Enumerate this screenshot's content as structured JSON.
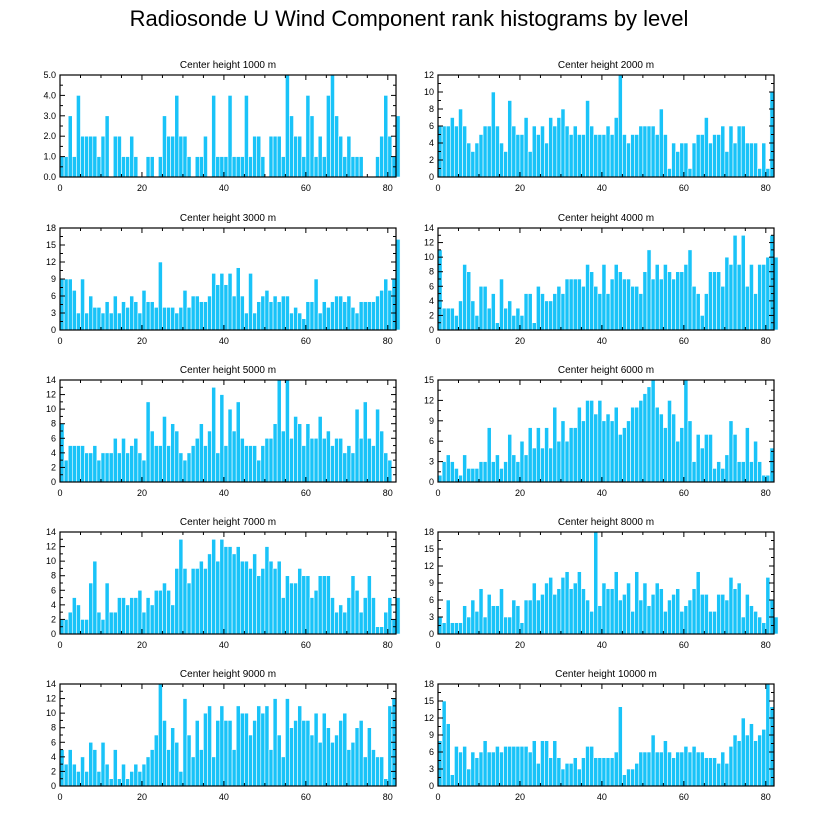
{
  "title": "Radiosonde U Wind Component rank histograms by level",
  "colors": {
    "bar": "#19c3f8",
    "bar_edge": "#ffffff",
    "axis": "#000000"
  },
  "chart_data": [
    {
      "type": "bar",
      "title": "Center height 1000 m",
      "xlim": [
        0,
        82
      ],
      "ylim": [
        0,
        5
      ],
      "xticks": [
        0,
        20,
        40,
        60,
        80
      ],
      "yticks": [
        0,
        1,
        2,
        3,
        4,
        5
      ],
      "ytick_labels": [
        "0.0",
        "1.0",
        "2.0",
        "3.0",
        "4.0",
        "5.0"
      ],
      "values": [
        1,
        1,
        3,
        1,
        4,
        2,
        2,
        2,
        2,
        1,
        2,
        3,
        0,
        2,
        2,
        1,
        1,
        2,
        1,
        0,
        0,
        1,
        1,
        0,
        1,
        3,
        2,
        2,
        4,
        2,
        2,
        1,
        0,
        1,
        1,
        2,
        0,
        4,
        1,
        1,
        1,
        4,
        1,
        1,
        1,
        4,
        1,
        2,
        2,
        1,
        0,
        2,
        2,
        2,
        1,
        5,
        3,
        2,
        2,
        1,
        4,
        3,
        1,
        2,
        1,
        4,
        5,
        3,
        2,
        1,
        2,
        1,
        1,
        1,
        0,
        0,
        0,
        1,
        2,
        4,
        2,
        1,
        3
      ]
    },
    {
      "type": "bar",
      "title": "Center height 2000 m",
      "xlim": [
        0,
        82
      ],
      "ylim": [
        0,
        12
      ],
      "xticks": [
        0,
        20,
        40,
        60,
        80
      ],
      "yticks": [
        0,
        2,
        4,
        6,
        8,
        10,
        12
      ],
      "ytick_labels": [
        "0",
        "2",
        "4",
        "6",
        "8",
        "10",
        "12"
      ],
      "values": [
        6,
        6,
        6,
        7,
        6,
        8,
        6,
        4,
        3,
        4,
        5,
        6,
        6,
        10,
        6,
        4,
        3,
        9,
        6,
        5,
        5,
        7,
        3,
        6,
        5,
        6,
        4,
        7,
        6,
        7,
        8,
        6,
        5,
        6,
        5,
        5,
        9,
        6,
        5,
        5,
        5,
        6,
        5,
        7,
        12,
        5,
        4,
        5,
        5,
        6,
        6,
        6,
        6,
        5,
        8,
        5,
        1,
        4,
        3,
        4,
        4,
        1,
        4,
        5,
        5,
        7,
        4,
        5,
        5,
        6,
        3,
        6,
        4,
        6,
        6,
        4,
        4,
        4,
        1,
        4,
        1,
        10
      ]
    },
    {
      "type": "bar",
      "title": "Center height 3000 m",
      "xlim": [
        0,
        82
      ],
      "ylim": [
        0,
        18
      ],
      "xticks": [
        0,
        20,
        40,
        60,
        80
      ],
      "yticks": [
        0,
        3,
        6,
        9,
        12,
        15,
        18
      ],
      "ytick_labels": [
        "0",
        "3",
        "6",
        "9",
        "12",
        "15",
        "18"
      ],
      "values": [
        9,
        9,
        9,
        7,
        3,
        9,
        3,
        6,
        4,
        4,
        3,
        5,
        3,
        6,
        3,
        5,
        4,
        6,
        5,
        3,
        7,
        5,
        5,
        4,
        12,
        4,
        4,
        4,
        3,
        4,
        7,
        4,
        6,
        6,
        5,
        5,
        6,
        10,
        8,
        10,
        8,
        10,
        6,
        11,
        6,
        3,
        10,
        3,
        5,
        6,
        7,
        5,
        6,
        5,
        6,
        6,
        3,
        4,
        3,
        2,
        5,
        5,
        9,
        3,
        5,
        4,
        5,
        6,
        6,
        5,
        6,
        4,
        3,
        5,
        5,
        5,
        5,
        6,
        7,
        9,
        7,
        9,
        16
      ]
    },
    {
      "type": "bar",
      "title": "Center height 4000 m",
      "xlim": [
        0,
        82
      ],
      "ylim": [
        0,
        14
      ],
      "xticks": [
        0,
        20,
        40,
        60,
        80
      ],
      "yticks": [
        0,
        2,
        4,
        6,
        8,
        10,
        12,
        14
      ],
      "ytick_labels": [
        "0",
        "2",
        "4",
        "6",
        "8",
        "10",
        "12",
        "14"
      ],
      "values": [
        11,
        3,
        3,
        3,
        2,
        4,
        9,
        8,
        4,
        2,
        6,
        6,
        3,
        5,
        1,
        7,
        3,
        4,
        2,
        3,
        2,
        5,
        5,
        1,
        6,
        5,
        4,
        4,
        5,
        6,
        5,
        7,
        7,
        7,
        7,
        6,
        9,
        8,
        6,
        5,
        9,
        5,
        7,
        9,
        8,
        7,
        7,
        6,
        6,
        5,
        8,
        11,
        7,
        9,
        7,
        9,
        8,
        7,
        8,
        8,
        9,
        11,
        6,
        5,
        2,
        5,
        8,
        8,
        8,
        6,
        10,
        9,
        13,
        9,
        13,
        6,
        9,
        5,
        9,
        9,
        10,
        13,
        10
      ]
    },
    {
      "type": "bar",
      "title": "Center height 5000 m",
      "xlim": [
        0,
        82
      ],
      "ylim": [
        0,
        14
      ],
      "xticks": [
        0,
        20,
        40,
        60,
        80
      ],
      "yticks": [
        0,
        2,
        4,
        6,
        8,
        10,
        12,
        14
      ],
      "ytick_labels": [
        "0",
        "2",
        "4",
        "6",
        "8",
        "10",
        "12",
        "14"
      ],
      "values": [
        8,
        3,
        5,
        5,
        5,
        5,
        4,
        4,
        5,
        3,
        4,
        4,
        4,
        6,
        4,
        6,
        4,
        5,
        6,
        4,
        3,
        11,
        7,
        5,
        5,
        9,
        5,
        8,
        7,
        4,
        3,
        4,
        5,
        6,
        8,
        5,
        7,
        13,
        4,
        12,
        5,
        10,
        7,
        11,
        6,
        5,
        5,
        5,
        3,
        5,
        6,
        6,
        8,
        14,
        7,
        14,
        6,
        9,
        8,
        5,
        8,
        6,
        6,
        9,
        6,
        7,
        5,
        6,
        6,
        4,
        5,
        4,
        10,
        6,
        11,
        6,
        5,
        10,
        7,
        4,
        3
      ]
    },
    {
      "type": "bar",
      "title": "Center height 6000 m",
      "xlim": [
        0,
        82
      ],
      "ylim": [
        0,
        15
      ],
      "xticks": [
        0,
        20,
        40,
        60,
        80
      ],
      "yticks": [
        0,
        3,
        6,
        9,
        12,
        15
      ],
      "ytick_labels": [
        "0",
        "3",
        "6",
        "9",
        "12",
        "15"
      ],
      "values": [
        1,
        3,
        4,
        3,
        2,
        1,
        4,
        2,
        2,
        2,
        3,
        3,
        8,
        3,
        4,
        2,
        3,
        7,
        4,
        3,
        6,
        4,
        8,
        5,
        8,
        5,
        8,
        5,
        11,
        6,
        9,
        6,
        8,
        8,
        11,
        9,
        12,
        12,
        10,
        12,
        9,
        10,
        9,
        11,
        7,
        8,
        9,
        11,
        11,
        12,
        13,
        14,
        15,
        11,
        10,
        8,
        12,
        10,
        6,
        8,
        15,
        9,
        3,
        7,
        5,
        7,
        7,
        2,
        3,
        2,
        4,
        9,
        7,
        3,
        3,
        8,
        3,
        6,
        3,
        1,
        1,
        5
      ]
    },
    {
      "type": "bar",
      "title": "Center height 7000 m",
      "xlim": [
        0,
        82
      ],
      "ylim": [
        0,
        14
      ],
      "xticks": [
        0,
        20,
        40,
        60,
        80
      ],
      "yticks": [
        0,
        2,
        4,
        6,
        8,
        10,
        12,
        14
      ],
      "ytick_labels": [
        "0",
        "2",
        "4",
        "6",
        "8",
        "10",
        "12",
        "14"
      ],
      "values": [
        2,
        2,
        3,
        5,
        4,
        2,
        2,
        7,
        10,
        3,
        2,
        7,
        3,
        3,
        5,
        5,
        4,
        5,
        5,
        6,
        3,
        5,
        4,
        6,
        6,
        7,
        6,
        4,
        9,
        13,
        9,
        7,
        9,
        9,
        10,
        9,
        11,
        13,
        10,
        13,
        12,
        12,
        11,
        12,
        10,
        10,
        9,
        11,
        8,
        9,
        12,
        10,
        9,
        10,
        5,
        8,
        7,
        7,
        9,
        8,
        8,
        5,
        6,
        8,
        8,
        8,
        5,
        3,
        4,
        3,
        5,
        8,
        6,
        3,
        5,
        8,
        5,
        1,
        1,
        3,
        5,
        2,
        5
      ]
    },
    {
      "type": "bar",
      "title": "Center height 8000 m",
      "xlim": [
        0,
        82
      ],
      "ylim": [
        0,
        18
      ],
      "xticks": [
        0,
        20,
        40,
        60,
        80
      ],
      "yticks": [
        0,
        3,
        6,
        9,
        12,
        15,
        18
      ],
      "ytick_labels": [
        "0",
        "3",
        "6",
        "9",
        "12",
        "15",
        "18"
      ],
      "values": [
        3,
        2,
        6,
        2,
        2,
        2,
        5,
        3,
        6,
        4,
        8,
        3,
        7,
        5,
        5,
        8,
        3,
        3,
        6,
        5,
        2,
        6,
        6,
        9,
        6,
        7,
        9,
        10,
        7,
        8,
        10,
        11,
        8,
        9,
        11,
        8,
        6,
        4,
        18,
        5,
        9,
        8,
        8,
        11,
        6,
        7,
        9,
        4,
        11,
        6,
        9,
        5,
        7,
        9,
        8,
        4,
        6,
        7,
        8,
        4,
        5,
        6,
        8,
        11,
        7,
        7,
        4,
        4,
        7,
        7,
        6,
        10,
        8,
        9,
        3,
        7,
        5,
        4,
        3,
        2,
        10,
        6,
        3
      ]
    },
    {
      "type": "bar",
      "title": "Center height 9000 m",
      "xlim": [
        0,
        82
      ],
      "ylim": [
        0,
        14
      ],
      "xticks": [
        0,
        20,
        40,
        60,
        80
      ],
      "yticks": [
        0,
        2,
        4,
        6,
        8,
        10,
        12,
        14
      ],
      "ytick_labels": [
        "0",
        "2",
        "4",
        "6",
        "8",
        "10",
        "12",
        "14"
      ],
      "values": [
        5,
        3,
        5,
        3,
        2,
        4,
        2,
        6,
        5,
        2,
        6,
        3,
        1,
        5,
        1,
        3,
        1,
        2,
        3,
        2,
        3,
        4,
        5,
        7,
        14,
        9,
        5,
        8,
        6,
        2,
        12,
        7,
        4,
        9,
        5,
        10,
        11,
        4,
        9,
        11,
        9,
        9,
        5,
        11,
        10,
        10,
        7,
        9,
        11,
        10,
        11,
        5,
        12,
        7,
        4,
        12,
        8,
        9,
        11,
        9,
        9,
        7,
        10,
        6,
        10,
        8,
        6,
        7,
        9,
        10,
        5,
        6,
        8,
        9,
        4,
        8,
        5,
        4,
        4,
        1,
        11,
        12
      ]
    },
    {
      "type": "bar",
      "title": "Center height 10000 m",
      "xlim": [
        0,
        82
      ],
      "ylim": [
        0,
        18
      ],
      "xticks": [
        0,
        20,
        40,
        60,
        80
      ],
      "yticks": [
        0,
        3,
        6,
        9,
        12,
        15,
        18
      ],
      "ytick_labels": [
        "0",
        "3",
        "6",
        "9",
        "12",
        "15",
        "18"
      ],
      "values": [
        8,
        15,
        11,
        2,
        7,
        6,
        7,
        3,
        6,
        5,
        6,
        8,
        6,
        6,
        7,
        6,
        7,
        7,
        7,
        7,
        7,
        7,
        6,
        8,
        4,
        8,
        8,
        5,
        8,
        5,
        3,
        4,
        4,
        5,
        3,
        5,
        7,
        7,
        5,
        5,
        5,
        5,
        5,
        6,
        14,
        2,
        3,
        3,
        4,
        6,
        6,
        6,
        9,
        6,
        6,
        8,
        6,
        5,
        6,
        6,
        7,
        6,
        7,
        6,
        6,
        5,
        5,
        5,
        4,
        6,
        4,
        7,
        9,
        8,
        12,
        9,
        11,
        8,
        9,
        10,
        18,
        14
      ]
    }
  ]
}
